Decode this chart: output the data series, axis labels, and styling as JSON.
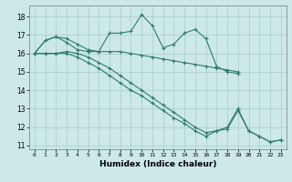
{
  "xlabel": "Humidex (Indice chaleur)",
  "bg_color": "#cce8e8",
  "grid_color": "#aacccc",
  "line_color": "#2e7d6e",
  "xlim": [
    -0.5,
    23.5
  ],
  "ylim": [
    10.8,
    18.6
  ],
  "yticks": [
    11,
    12,
    13,
    14,
    15,
    16,
    17,
    18
  ],
  "xticks": [
    0,
    1,
    2,
    3,
    4,
    5,
    6,
    7,
    8,
    9,
    10,
    11,
    12,
    13,
    14,
    15,
    16,
    17,
    18,
    19,
    20,
    21,
    22,
    23
  ],
  "series": [
    [
      16.0,
      16.7,
      16.9,
      16.8,
      16.5,
      16.2,
      16.1,
      17.1,
      17.1,
      17.2,
      18.1,
      17.5,
      16.3,
      16.5,
      17.1,
      17.3,
      16.8,
      15.3,
      15.0,
      14.9,
      null,
      null,
      null,
      null
    ],
    [
      16.0,
      16.7,
      16.9,
      16.6,
      16.2,
      16.1,
      16.1,
      16.1,
      16.1,
      16.0,
      15.9,
      15.8,
      15.7,
      15.6,
      15.5,
      15.4,
      15.3,
      15.2,
      15.1,
      15.0,
      null,
      null,
      null,
      null
    ],
    [
      16.0,
      16.0,
      16.0,
      16.0,
      15.8,
      15.5,
      15.2,
      14.8,
      14.4,
      14.0,
      13.7,
      13.3,
      12.9,
      12.5,
      12.2,
      11.8,
      11.5,
      11.8,
      12.0,
      13.0,
      11.8,
      11.5,
      11.2,
      11.3
    ],
    [
      16.0,
      16.0,
      16.0,
      16.1,
      16.0,
      15.8,
      15.5,
      15.2,
      14.8,
      14.4,
      14.0,
      13.6,
      13.2,
      12.8,
      12.4,
      12.0,
      11.7,
      11.8,
      11.9,
      12.9,
      11.8,
      11.5,
      11.2,
      11.3
    ]
  ]
}
